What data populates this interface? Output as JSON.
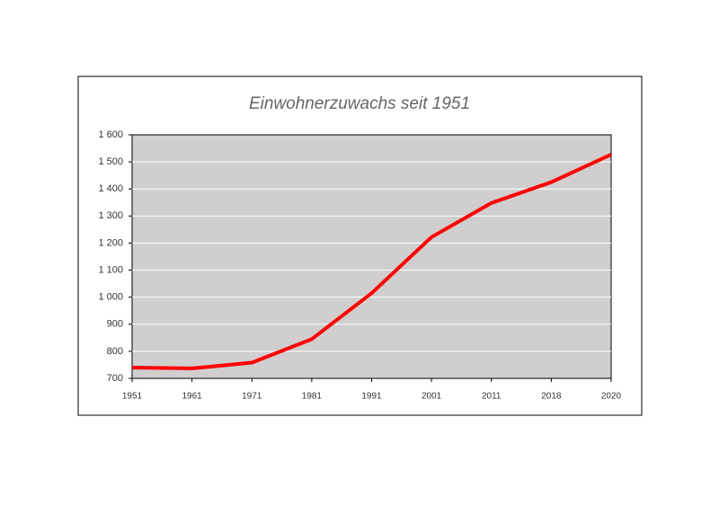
{
  "chart_data": {
    "type": "line",
    "title": "Einwohnerzuwachs seit 1951",
    "categories": [
      "1951",
      "1961",
      "1971",
      "1981",
      "1991",
      "2001",
      "2011",
      "2018",
      "2020"
    ],
    "series": [
      {
        "color": "#ff0000",
        "values": [
          740,
          737,
          758,
          845,
          1015,
          1222,
          1348,
          1425,
          1527
        ]
      }
    ],
    "ylim": [
      700,
      1600
    ],
    "yticks": [
      700,
      800,
      900,
      {
        "value": 1000,
        "label": "1 000"
      },
      {
        "value": 1100,
        "label": "1 100"
      },
      {
        "value": 1200,
        "label": "1 200"
      },
      {
        "value": 1300,
        "label": "1 300"
      },
      {
        "value": 1400,
        "label": "1 400"
      },
      {
        "value": 1500,
        "label": "1 500"
      },
      {
        "value": 1600,
        "label": "1 600"
      }
    ],
    "grid": true
  }
}
